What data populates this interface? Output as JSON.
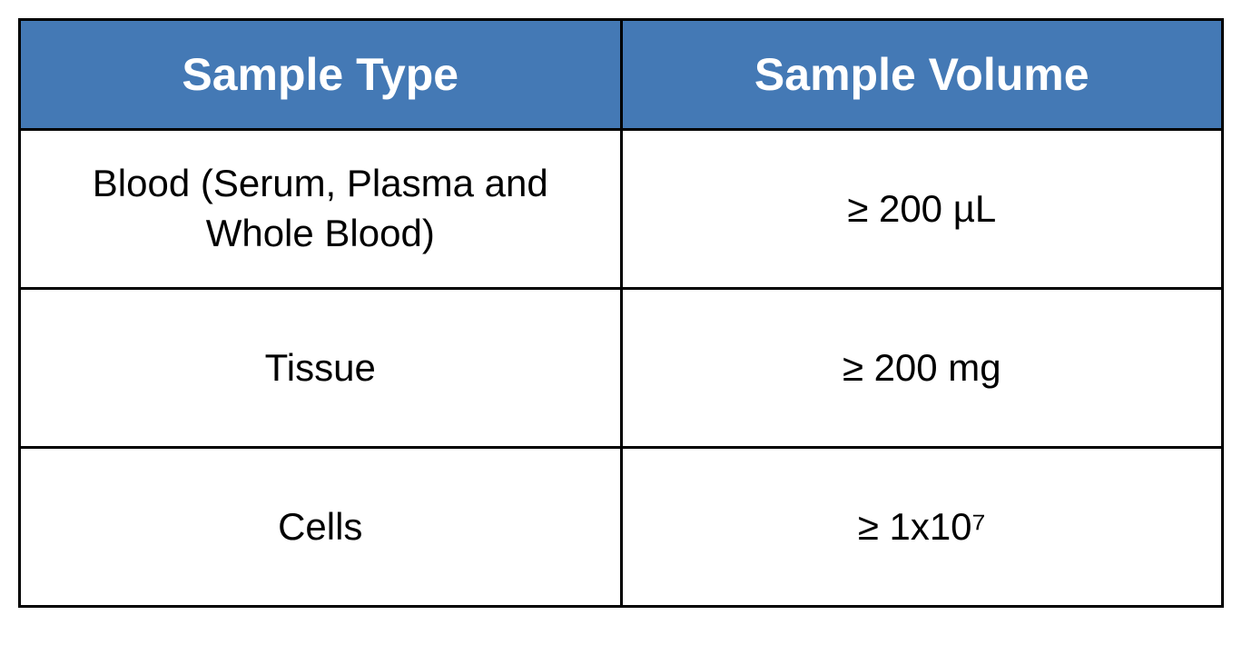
{
  "table": {
    "type": "table",
    "columns": [
      "Sample Type",
      "Sample Volume"
    ],
    "rows": [
      [
        "Blood (Serum, Plasma and Whole Blood)",
        "≥ 200 µL"
      ],
      [
        "Tissue",
        "≥ 200 mg"
      ],
      [
        "Cells",
        "≥ 1x10⁷"
      ]
    ],
    "header_bg_color": "#4479b5",
    "header_text_color": "#ffffff",
    "header_font_size": 50,
    "cell_bg_color": "#ffffff",
    "cell_text_color": "#000000",
    "cell_font_size": 42,
    "border_color": "#000000",
    "border_width": 3,
    "column_widths": [
      "50%",
      "50%"
    ]
  }
}
